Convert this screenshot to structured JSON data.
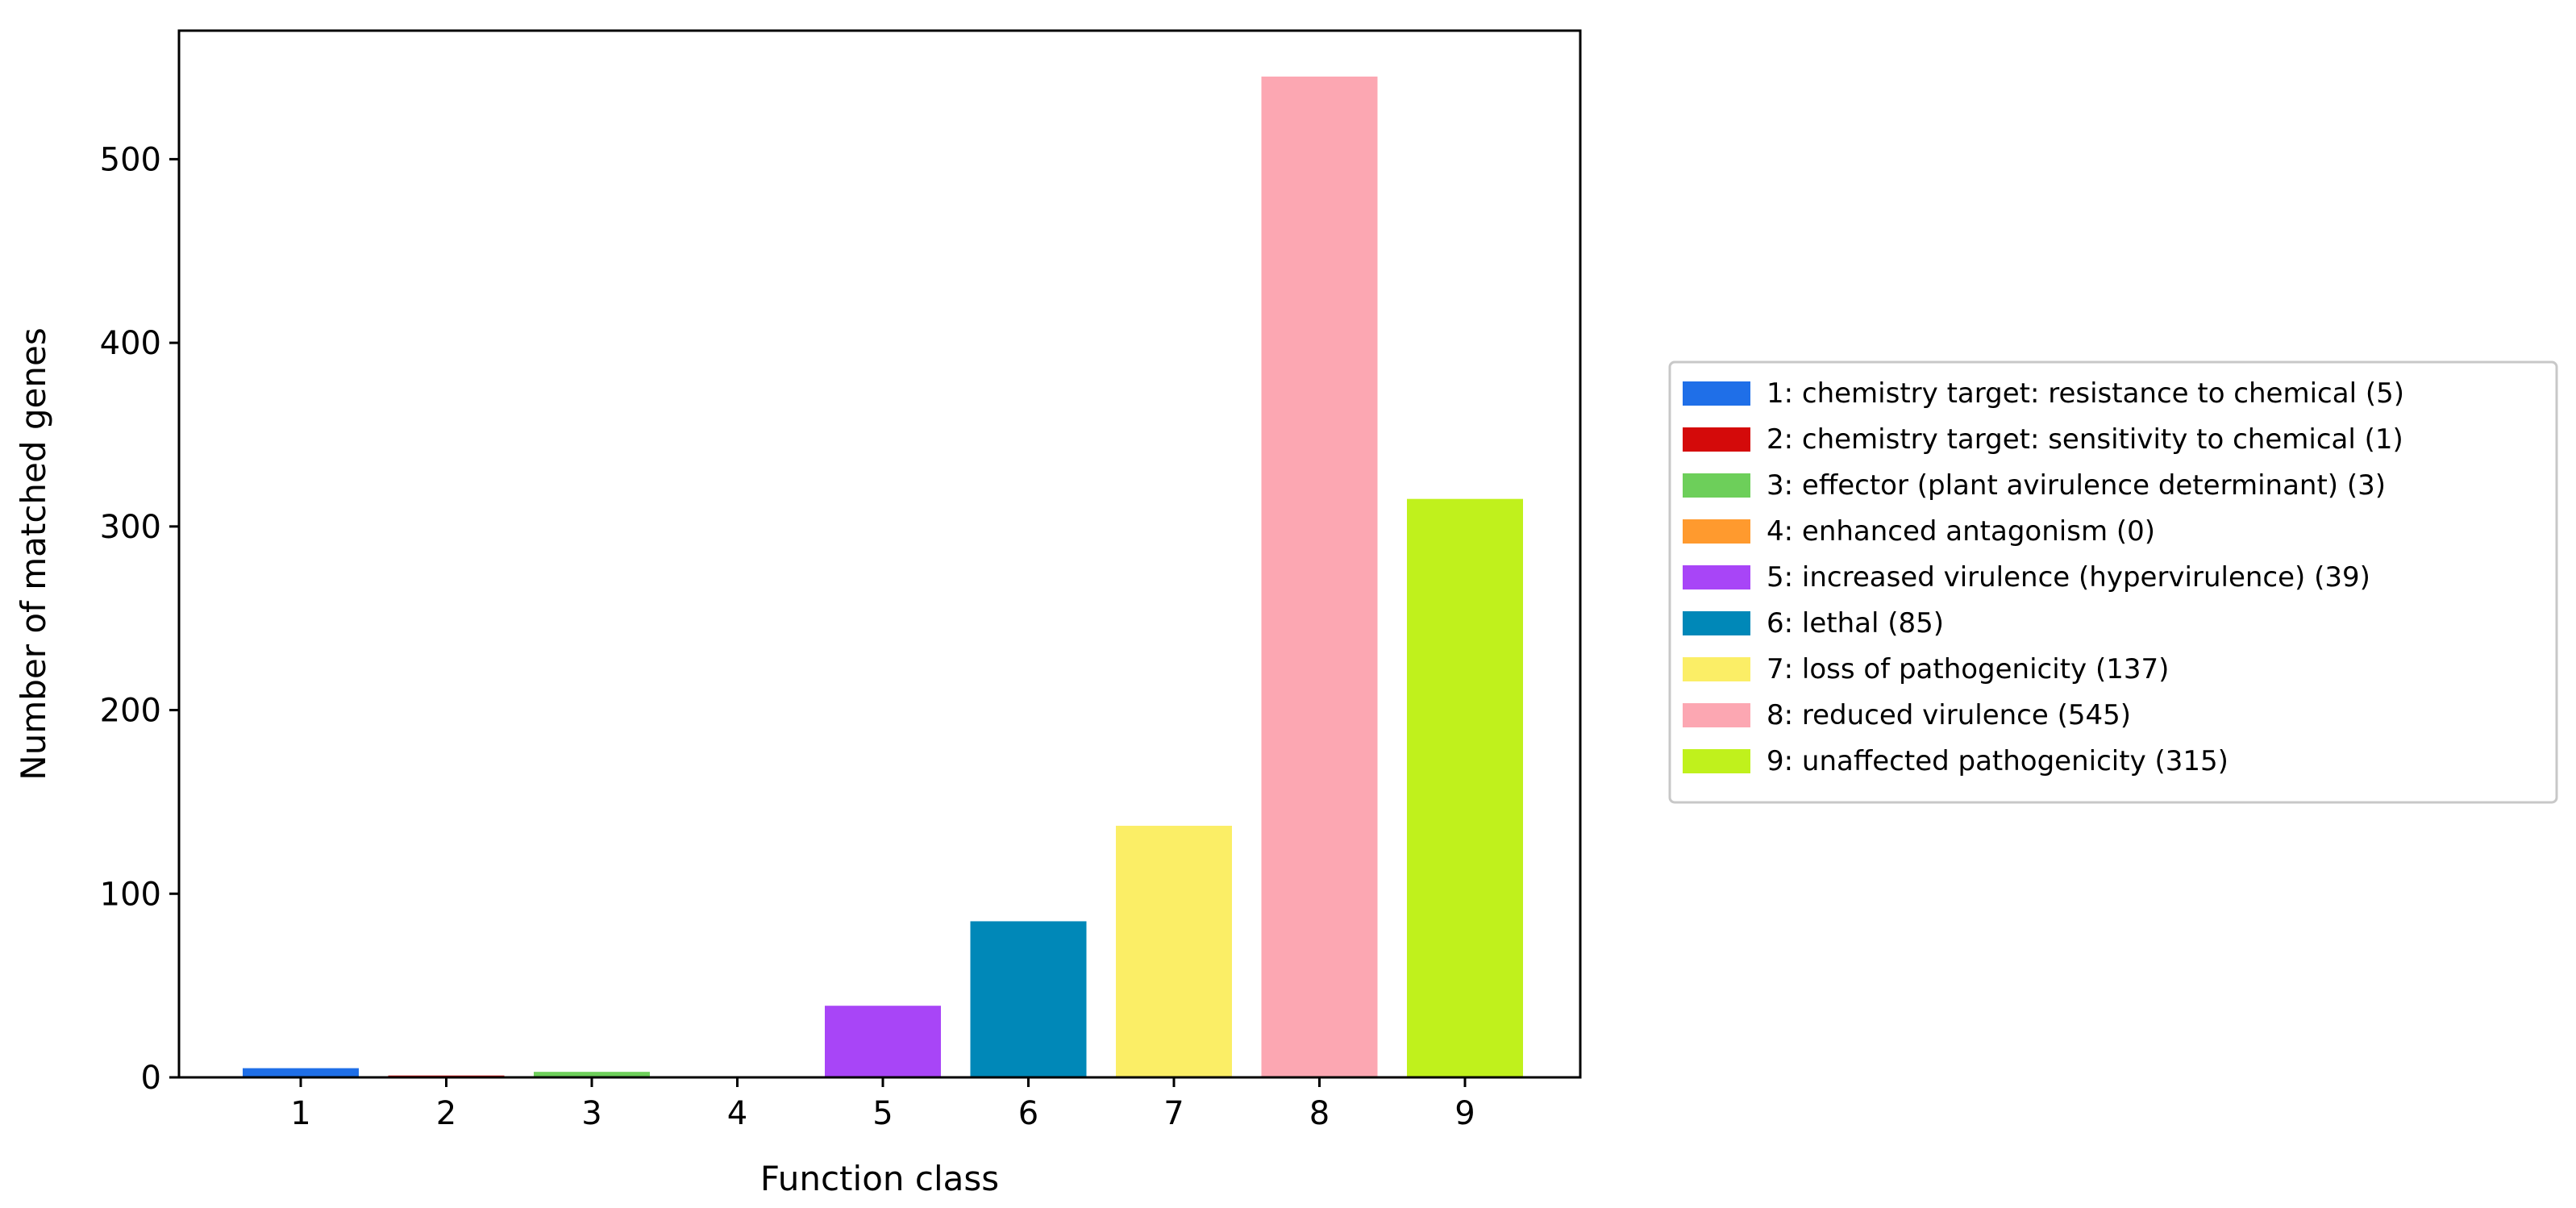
{
  "chart_data": {
    "type": "bar",
    "xlabel": "Function class",
    "ylabel": "Number of matched genes",
    "ylim": [
      0,
      570
    ],
    "yticks": [
      0,
      100,
      200,
      300,
      400,
      500
    ],
    "grid": false,
    "legend_position": "right",
    "categories": [
      "1",
      "2",
      "3",
      "4",
      "5",
      "6",
      "7",
      "8",
      "9"
    ],
    "values": [
      5,
      1,
      3,
      0,
      39,
      85,
      137,
      545,
      315
    ],
    "colors": [
      "#1f6fe8",
      "#d40a0a",
      "#6dcf5a",
      "#ff9a2e",
      "#a845f7",
      "#0088b8",
      "#fbee66",
      "#fca7b2",
      "#c0f11c"
    ],
    "legend": [
      "1: chemistry target: resistance to chemical (5)",
      "2: chemistry target: sensitivity to chemical (1)",
      "3: effector (plant avirulence determinant) (3)",
      "4: enhanced antagonism (0)",
      "5: increased virulence (hypervirulence) (39)",
      "6: lethal (85)",
      "7: loss of pathogenicity (137)",
      "8: reduced virulence (545)",
      "9: unaffected pathogenicity (315)"
    ]
  }
}
